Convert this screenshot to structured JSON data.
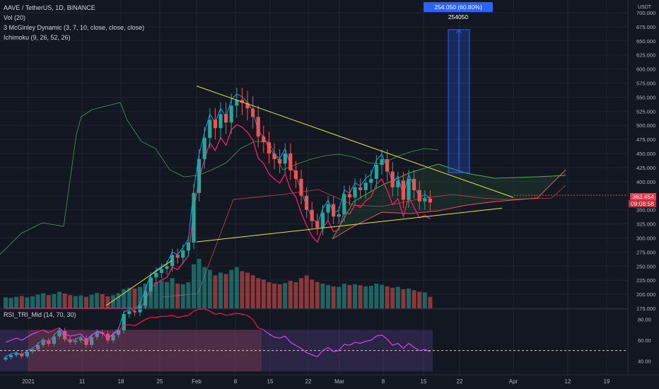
{
  "header": {
    "symbol_line": "AAVE / TetherUS, 1D, BINANCE",
    "indicators": [
      "Vol (20)",
      "3 McGinley Dynamic (3, 7, 10, close, close, close)",
      "Ichimoku (9, 26, 52, 26)"
    ],
    "rsi_label": "RSI_TRI_Mid (14, 70, 30)"
  },
  "price_axis": {
    "currency": "USDT",
    "ticks": [
      "700.000",
      "675.000",
      "650.000",
      "625.000",
      "600.000",
      "575.000",
      "550.000",
      "525.000",
      "500.000",
      "475.000",
      "450.000",
      "425.000",
      "400.000",
      "375.000",
      "350.000",
      "325.000",
      "300.000",
      "275.000",
      "250.000",
      "225.000",
      "200.000",
      "175.000"
    ],
    "current_price": "363.454",
    "countdown": "09:08:58"
  },
  "rsi_axis": {
    "ticks": [
      "80.00",
      "60.00",
      "40.00"
    ]
  },
  "time_axis": {
    "ticks": [
      "2021",
      "11",
      "18",
      "25",
      "Feb",
      "8",
      "15",
      "22",
      "Mar",
      "8",
      "15",
      "22",
      "Apr",
      "12",
      "19"
    ]
  },
  "measure_label": "254.050 (60.80%) 254050",
  "colors": {
    "bg": "#131722",
    "up": "#26a69a",
    "down": "#ef5350",
    "trend": "#e6e633",
    "rsi_line": "#e040fb",
    "rsi_mid": "#ffd600"
  },
  "chart_data": {
    "type": "candlestick",
    "title": "AAVE / TetherUS, 1D, BINANCE",
    "ylim": [
      175,
      700
    ],
    "x_dates": [
      "2020-12-28",
      "2020-12-29",
      "2020-12-30",
      "2020-12-31",
      "2021-01-01",
      "2021-01-02",
      "2021-01-03",
      "2021-01-04",
      "2021-01-05",
      "2021-01-06",
      "2021-01-07",
      "2021-01-08",
      "2021-01-09",
      "2021-01-10",
      "2021-01-11",
      "2021-01-12",
      "2021-01-13",
      "2021-01-14",
      "2021-01-15",
      "2021-01-16",
      "2021-01-17",
      "2021-01-18",
      "2021-01-19",
      "2021-01-20",
      "2021-01-21",
      "2021-01-22",
      "2021-01-23",
      "2021-01-24",
      "2021-01-25",
      "2021-01-26",
      "2021-01-27",
      "2021-01-28",
      "2021-01-29",
      "2021-01-30",
      "2021-01-31",
      "2021-02-01",
      "2021-02-02",
      "2021-02-03",
      "2021-02-04",
      "2021-02-05",
      "2021-02-06",
      "2021-02-07",
      "2021-02-08",
      "2021-02-09",
      "2021-02-10",
      "2021-02-11",
      "2021-02-12",
      "2021-02-13",
      "2021-02-14",
      "2021-02-15",
      "2021-02-16",
      "2021-02-17",
      "2021-02-18",
      "2021-02-19",
      "2021-02-20",
      "2021-02-21",
      "2021-02-22",
      "2021-02-23",
      "2021-02-24",
      "2021-02-25",
      "2021-02-26",
      "2021-02-27",
      "2021-02-28",
      "2021-03-01",
      "2021-03-02",
      "2021-03-03",
      "2021-03-04",
      "2021-03-05",
      "2021-03-06",
      "2021-03-07",
      "2021-03-08",
      "2021-03-09",
      "2021-03-10",
      "2021-03-11",
      "2021-03-12",
      "2021-03-13",
      "2021-03-14",
      "2021-03-15",
      "2021-03-16",
      "2021-03-17"
    ],
    "ohlc_close": [
      88,
      92,
      95,
      90,
      98,
      102,
      110,
      118,
      112,
      125,
      135,
      120,
      115,
      118,
      122,
      110,
      124,
      132,
      130,
      118,
      128,
      136,
      165,
      170,
      168,
      180,
      205,
      230,
      238,
      245,
      250,
      270,
      265,
      278,
      292,
      380,
      440,
      478,
      510,
      495,
      520,
      505,
      535,
      545,
      540,
      530,
      515,
      480,
      470,
      450,
      440,
      432,
      450,
      420,
      405,
      375,
      350,
      330,
      318,
      345,
      360,
      338,
      342,
      378,
      372,
      390,
      385,
      398,
      405,
      430,
      440,
      418,
      390,
      402,
      368,
      405,
      385,
      365,
      370,
      363
    ],
    "ohlc_open": [
      84,
      88,
      92,
      95,
      90,
      98,
      102,
      110,
      118,
      112,
      125,
      135,
      120,
      115,
      118,
      122,
      110,
      124,
      132,
      130,
      118,
      128,
      136,
      165,
      170,
      168,
      180,
      205,
      230,
      238,
      245,
      250,
      270,
      265,
      278,
      292,
      380,
      440,
      478,
      510,
      495,
      520,
      505,
      535,
      545,
      540,
      530,
      515,
      480,
      470,
      450,
      440,
      432,
      450,
      420,
      405,
      375,
      350,
      330,
      318,
      345,
      360,
      338,
      342,
      378,
      372,
      390,
      385,
      398,
      405,
      430,
      440,
      418,
      390,
      402,
      368,
      405,
      385,
      365,
      370
    ],
    "rsi_values": [
      58,
      60,
      62,
      60,
      63,
      66,
      68,
      70,
      67,
      70,
      72,
      66,
      64,
      65,
      66,
      60,
      65,
      68,
      67,
      62,
      66,
      69,
      74,
      75,
      74,
      77,
      80,
      82,
      82,
      83,
      83,
      84,
      82,
      83,
      84,
      88,
      90,
      90,
      88,
      85,
      86,
      84,
      85,
      86,
      85,
      84,
      80,
      72,
      70,
      66,
      63,
      62,
      64,
      58,
      55,
      52,
      48,
      46,
      44,
      50,
      53,
      49,
      50,
      56,
      55,
      58,
      57,
      59,
      60,
      64,
      65,
      61,
      55,
      57,
      52,
      57,
      53,
      50,
      51,
      49
    ],
    "volume_values": [
      40,
      38,
      42,
      45,
      40,
      44,
      50,
      55,
      48,
      52,
      60,
      54,
      48,
      45,
      47,
      42,
      50,
      56,
      52,
      44,
      48,
      55,
      70,
      75,
      72,
      78,
      90,
      110,
      95,
      100,
      96,
      110,
      90,
      88,
      95,
      160,
      180,
      150,
      140,
      120,
      130,
      125,
      140,
      150,
      135,
      130,
      120,
      110,
      105,
      95,
      90,
      88,
      92,
      100,
      95,
      110,
      120,
      105,
      96,
      90,
      85,
      80,
      78,
      90,
      85,
      88,
      84,
      80,
      82,
      90,
      86,
      80,
      75,
      78,
      70,
      72,
      66,
      60,
      58,
      42
    ],
    "measure": {
      "from": 416,
      "to": 670,
      "label": "254.050 (60.80%) 254050"
    }
  }
}
